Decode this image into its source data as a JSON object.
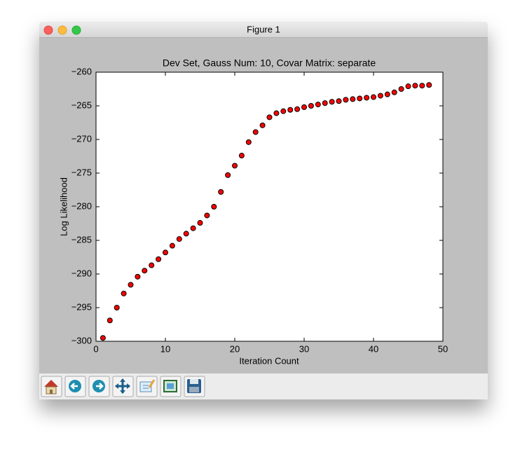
{
  "window": {
    "title": "Figure 1"
  },
  "chart_data": {
    "type": "scatter",
    "title": "Dev Set, Gauss Num: 10, Covar Matrix: separate",
    "x_label": "Iteration Count",
    "y_label": "Log Likelihood",
    "x": [
      1,
      2,
      3,
      4,
      5,
      6,
      7,
      8,
      9,
      10,
      11,
      12,
      13,
      14,
      15,
      16,
      17,
      18,
      19,
      20,
      21,
      22,
      23,
      24,
      25,
      26,
      27,
      28,
      29,
      30,
      31,
      32,
      33,
      34,
      35,
      36,
      37,
      38,
      39,
      40,
      41,
      42,
      43,
      44,
      45,
      46,
      47,
      48
    ],
    "values": [
      -299.5,
      -296.9,
      -295.0,
      -292.9,
      -291.6,
      -290.4,
      -289.5,
      -288.7,
      -287.8,
      -286.8,
      -285.8,
      -284.8,
      -284.0,
      -283.2,
      -282.4,
      -281.3,
      -280.0,
      -277.8,
      -275.3,
      -273.9,
      -272.4,
      -270.4,
      -268.9,
      -267.9,
      -266.7,
      -266.1,
      -265.8,
      -265.6,
      -265.5,
      -265.2,
      -265.0,
      -264.8,
      -264.6,
      -264.4,
      -264.3,
      -264.1,
      -264.0,
      -263.9,
      -263.8,
      -263.7,
      -263.5,
      -263.3,
      -263.0,
      -262.5,
      -262.1,
      -262.0,
      -262.0,
      -261.9
    ],
    "color": "#ff0000",
    "xlim": [
      0,
      50
    ],
    "xticks": [
      0,
      10,
      20,
      30,
      40,
      50
    ],
    "ylim": [
      -300,
      -260
    ],
    "yticks": [
      {
        "value": -300,
        "label": "−300"
      },
      {
        "value": -295,
        "label": "−295"
      },
      {
        "value": -290,
        "label": "−290"
      },
      {
        "value": -285,
        "label": "−285"
      },
      {
        "value": -280,
        "label": "−280"
      },
      {
        "value": -275,
        "label": "−275"
      },
      {
        "value": -270,
        "label": "−270"
      },
      {
        "value": -265,
        "label": "−265"
      },
      {
        "value": -260,
        "label": "−260"
      }
    ],
    "grid": false
  }
}
